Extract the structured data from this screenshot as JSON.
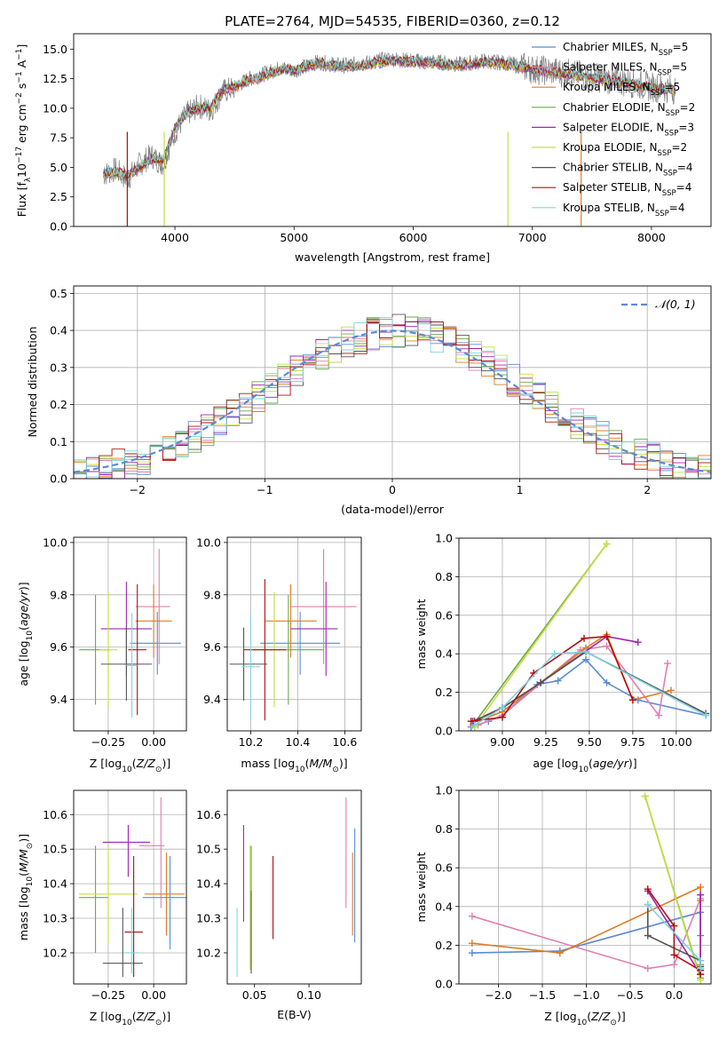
{
  "figure": {
    "title": "PLATE=2764, MJD=54535, FIBERID=0360, z=0.12"
  },
  "series": [
    {
      "name": "Chabrier MILES, N$_{SSP}$=5",
      "label": "Chabrier MILES, N",
      "sub": "SSP",
      "tail": "=5",
      "color": "#5b8ad6"
    },
    {
      "name": "Salpeter MILES, N$_{SSP}$=5",
      "label": "Salpeter MILES, N",
      "sub": "SSP",
      "tail": "=5",
      "color": "#e07fb0"
    },
    {
      "name": "Kroupa MILES, N$_{SSP}$=5",
      "label": "Kroupa MILES, N",
      "sub": "SSP",
      "tail": "=5",
      "color": "#e07b24"
    },
    {
      "name": "Chabrier ELODIE, N$_{SSP}$=2",
      "label": "Chabrier ELODIE, N",
      "sub": "SSP",
      "tail": "=2",
      "color": "#6aa84f"
    },
    {
      "name": "Salpeter ELODIE, N$_{SSP}$=3",
      "label": "Salpeter ELODIE, N",
      "sub": "SSP",
      "tail": "=3",
      "color": "#9c27b0"
    },
    {
      "name": "Kroupa ELODIE, N$_{SSP}$=2",
      "label": "Kroupa ELODIE, N",
      "sub": "SSP",
      "tail": "=2",
      "color": "#c6e03c"
    },
    {
      "name": "Chabrier STELIB, N$_{SSP}$=4",
      "label": "Chabrier STELIB, N",
      "sub": "SSP",
      "tail": "=4",
      "color": "#555555"
    },
    {
      "name": "Salpeter STELIB, N$_{SSP}$=4",
      "label": "Salpeter STELIB, N",
      "sub": "SSP",
      "tail": "=4",
      "color": "#b00f12"
    },
    {
      "name": "Kroupa STELIB, N$_{SSP}$=4",
      "label": "Kroupa STELIB, N",
      "sub": "SSP",
      "tail": "=4",
      "color": "#7fd4e0"
    }
  ],
  "chart_data": [
    {
      "id": "spectrum",
      "type": "line",
      "title": "PLATE=2764, MJD=54535, FIBERID=0360, z=0.12",
      "xlabel": "wavelength [Angstrom, rest frame]",
      "ylabel": "Flux [f$_\\lambda$10$^{-17}$ erg cm$^{-2}$ s$^{-1}$ A$^{-1}$]",
      "xlim": [
        3150,
        8500
      ],
      "ylim": [
        0,
        16.3
      ],
      "xticks": [
        4000,
        5000,
        6000,
        7000,
        8000
      ],
      "yticks": [
        0.0,
        2.5,
        5.0,
        7.5,
        10.0,
        12.5,
        15.0
      ],
      "grid": false,
      "legend": "upper right",
      "observed": {
        "color": "#7f7f7f",
        "x": [
          3400,
          3500,
          3600,
          3700,
          3800,
          3900,
          4000,
          4100,
          4200,
          4300,
          4400,
          4500,
          4600,
          4700,
          4800,
          4900,
          5000,
          5200,
          5400,
          5600,
          5800,
          6000,
          6200,
          6400,
          6600,
          6800,
          7000,
          7200,
          7400,
          7600,
          7800,
          8000,
          8200
        ],
        "y": [
          4.4,
          4.8,
          4.0,
          5.2,
          6.0,
          5.3,
          8.0,
          9.5,
          10.2,
          9.8,
          11.4,
          11.7,
          12.4,
          12.7,
          13.1,
          13.4,
          13.2,
          13.9,
          13.6,
          13.8,
          14.2,
          14.0,
          13.9,
          13.7,
          14.0,
          13.8,
          13.3,
          13.1,
          12.8,
          12.5,
          12.2,
          11.8,
          11.6
        ]
      },
      "model": {
        "x": [
          3400,
          3500,
          3600,
          3700,
          3800,
          3900,
          4000,
          4100,
          4200,
          4300,
          4400,
          4500,
          4600,
          4700,
          4800,
          4900,
          5000,
          5200,
          5400,
          5600,
          5800,
          6000,
          6200,
          6400,
          6600,
          6800,
          7000,
          7200,
          7400,
          7600,
          7800,
          8000,
          8200
        ],
        "y": [
          4.5,
          4.6,
          4.3,
          5.0,
          5.7,
          5.6,
          8.3,
          9.6,
          10.0,
          10.0,
          11.5,
          11.8,
          12.3,
          12.6,
          13.0,
          13.3,
          13.2,
          13.8,
          13.5,
          13.7,
          14.0,
          13.9,
          13.8,
          13.6,
          13.9,
          13.7,
          13.3,
          13.0,
          12.7,
          12.4,
          12.1,
          11.7,
          11.5
        ]
      }
    },
    {
      "id": "residuals",
      "type": "step",
      "xlabel": "(data-model)/error",
      "ylabel": "Normed distribution",
      "xlim": [
        -2.5,
        2.5
      ],
      "ylim": [
        0,
        0.52
      ],
      "xticks": [
        -2,
        -1,
        0,
        1,
        2
      ],
      "yticks": [
        0.0,
        0.1,
        0.2,
        0.3,
        0.4,
        0.5
      ],
      "grid": true,
      "legend": "upper right",
      "gaussian": {
        "name": "$\\mathcal{N}(0,1)$",
        "label": "𝒩(0, 1)",
        "color": "#5b8ad6"
      }
    },
    {
      "id": "age_vs_Z",
      "type": "errorbar",
      "xlabel": "Z [log$_{10}$($Z/Z_\\odot$)]",
      "ylabel": "age  [log$_{10}$($age/yr$)]",
      "xlim": [
        -0.44,
        0.18
      ],
      "ylim": [
        9.28,
        10.02
      ],
      "xticks": [
        -0.25,
        0.0
      ],
      "yticks": [
        9.4,
        9.6,
        9.8,
        10.0
      ],
      "grid": true,
      "points": [
        {
          "x": 0.02,
          "y": 9.615,
          "xerr": [
            0.15,
            0.13
          ],
          "yerr": [
            0.12,
            0.12
          ]
        },
        {
          "x": 0.03,
          "y": 9.755,
          "xerr": [
            0.13,
            0.06
          ],
          "yerr": [
            0.22,
            0.22
          ]
        },
        {
          "x": 0.0,
          "y": 9.7,
          "xerr": [
            0.1,
            0.1
          ],
          "yerr": [
            0.14,
            0.14
          ]
        },
        {
          "x": -0.32,
          "y": 9.59,
          "xerr": [
            0.09,
            0.08
          ],
          "yerr": [
            0.21,
            0.21
          ]
        },
        {
          "x": -0.15,
          "y": 9.67,
          "xerr": [
            0.14,
            0.14
          ],
          "yerr": [
            0.18,
            0.18
          ]
        },
        {
          "x": -0.25,
          "y": 9.59,
          "xerr": [
            0.05,
            0.05
          ],
          "yerr": [
            0.22,
            0.22
          ]
        },
        {
          "x": -0.15,
          "y": 9.535,
          "xerr": [
            0.14,
            0.14
          ],
          "yerr": [
            0.14,
            0.14
          ]
        },
        {
          "x": -0.09,
          "y": 9.59,
          "xerr": [
            0.05,
            0.05
          ],
          "yerr": [
            0.25,
            0.25
          ]
        },
        {
          "x": -0.12,
          "y": 9.53,
          "xerr": [
            0.03,
            0.03
          ],
          "yerr": [
            0.2,
            0.2
          ]
        }
      ]
    },
    {
      "id": "age_vs_mass",
      "type": "errorbar",
      "xlabel": "mass [log$_{10}$($M/M_\\odot$)]",
      "ylabel": "",
      "xlim": [
        10.1,
        10.67
      ],
      "ylim": [
        9.28,
        10.02
      ],
      "xticks": [
        10.2,
        10.4,
        10.6
      ],
      "yticks": [
        9.4,
        9.6,
        9.8,
        10.0
      ],
      "grid": true,
      "points": [
        {
          "x": 10.41,
          "y": 9.615,
          "xerr": [
            0.17,
            0.17
          ],
          "yerr": [
            0.12,
            0.12
          ]
        },
        {
          "x": 10.51,
          "y": 9.755,
          "xerr": [
            0.14,
            0.14
          ],
          "yerr": [
            0.22,
            0.22
          ]
        },
        {
          "x": 10.37,
          "y": 9.7,
          "xerr": [
            0.11,
            0.11
          ],
          "yerr": [
            0.14,
            0.14
          ]
        },
        {
          "x": 10.36,
          "y": 9.59,
          "xerr": [
            0.15,
            0.15
          ],
          "yerr": [
            0.21,
            0.21
          ]
        },
        {
          "x": 10.52,
          "y": 9.67,
          "xerr": [
            0.15,
            0.05
          ],
          "yerr": [
            0.18,
            0.18
          ]
        },
        {
          "x": 10.3,
          "y": 9.59,
          "xerr": [
            0.05,
            0.05
          ],
          "yerr": [
            0.22,
            0.22
          ]
        },
        {
          "x": 10.17,
          "y": 9.535,
          "xerr": [
            0.06,
            0.1
          ],
          "yerr": [
            0.14,
            0.14
          ]
        },
        {
          "x": 10.26,
          "y": 9.59,
          "xerr": [
            0.09,
            0.09
          ],
          "yerr": [
            0.27,
            0.27
          ]
        },
        {
          "x": 10.2,
          "y": 9.525,
          "xerr": [
            0.04,
            0.04
          ],
          "yerr": [
            0.2,
            0.2
          ]
        }
      ]
    },
    {
      "id": "weight_vs_age",
      "type": "line",
      "xlabel": "age  [log$_{10}$($age/yr$)]",
      "ylabel": "mass weight",
      "xlim": [
        8.75,
        10.2
      ],
      "ylim": [
        0,
        1.0
      ],
      "xticks": [
        9.0,
        9.25,
        9.5,
        9.75,
        10.0
      ],
      "yticks": [
        0.0,
        0.2,
        0.4,
        0.6,
        0.8,
        1.0
      ],
      "grid": true,
      "lines": [
        {
          "x": [
            8.82,
            8.92,
            9.0,
            9.2,
            9.32,
            9.48,
            9.6,
            9.78,
            10.17
          ],
          "y": [
            0.02,
            0.05,
            0.08,
            0.24,
            0.26,
            0.37,
            0.25,
            0.16,
            0.08
          ]
        },
        {
          "x": [
            8.86,
            9.0,
            9.45,
            9.6,
            9.9,
            9.95
          ],
          "y": [
            0.03,
            0.08,
            0.42,
            0.44,
            0.08,
            0.35
          ]
        },
        {
          "x": [
            8.86,
            9.0,
            9.48,
            9.6,
            9.75,
            9.97
          ],
          "y": [
            0.05,
            0.1,
            0.43,
            0.5,
            0.16,
            0.21
          ]
        },
        {
          "x": [
            8.83,
            9.6
          ],
          "y": [
            0.03,
            0.97
          ]
        },
        {
          "x": [
            8.83,
            9.0,
            9.22,
            9.6,
            9.78
          ],
          "y": [
            0.05,
            0.12,
            0.25,
            0.49,
            0.46
          ]
        },
        {
          "x": [
            8.84,
            9.6
          ],
          "y": [
            0.02,
            0.97
          ]
        },
        {
          "x": [
            8.84,
            9.0,
            9.22,
            9.48,
            10.17
          ],
          "y": [
            0.05,
            0.12,
            0.25,
            0.41,
            0.09
          ]
        },
        {
          "x": [
            8.82,
            9.0,
            9.18,
            9.47,
            9.6,
            9.75
          ],
          "y": [
            0.05,
            0.07,
            0.3,
            0.48,
            0.49,
            0.16
          ]
        },
        {
          "x": [
            8.84,
            9.0,
            9.3,
            9.48,
            10.17
          ],
          "y": [
            0.03,
            0.12,
            0.4,
            0.41,
            0.08
          ]
        }
      ]
    },
    {
      "id": "mass_vs_Z",
      "type": "errorbar",
      "xlabel": "Z [log$_{10}$($Z/Z_\\odot$)]",
      "ylabel": "mass [log$_{10}$($M/M_\\odot$)]",
      "xlim": [
        -0.44,
        0.18
      ],
      "ylim": [
        10.11,
        10.67
      ],
      "xticks": [
        -0.25,
        0.0
      ],
      "yticks": [
        10.2,
        10.3,
        10.4,
        10.5,
        10.6
      ],
      "grid": true,
      "points": [
        {
          "x": 0.09,
          "y": 10.36,
          "xerr": [
            0.15,
            0.13
          ],
          "yerr": [
            0.15,
            0.12
          ]
        },
        {
          "x": 0.04,
          "y": 10.51,
          "xerr": [
            0.12,
            0.02
          ],
          "yerr": [
            0.18,
            0.14
          ]
        },
        {
          "x": 0.07,
          "y": 10.37,
          "xerr": [
            0.12,
            0.1
          ],
          "yerr": [
            0.12,
            0.12
          ]
        },
        {
          "x": -0.32,
          "y": 10.36,
          "xerr": [
            0.09,
            0.07
          ],
          "yerr": [
            0.16,
            0.15
          ]
        },
        {
          "x": -0.14,
          "y": 10.52,
          "xerr": [
            0.14,
            0.12
          ],
          "yerr": [
            0.1,
            0.05
          ]
        },
        {
          "x": -0.25,
          "y": 10.37,
          "xerr": [
            0.16,
            0.16
          ],
          "yerr": [
            0.14,
            0.14
          ]
        },
        {
          "x": -0.17,
          "y": 10.17,
          "xerr": [
            0.11,
            0.11
          ],
          "yerr": [
            0.04,
            0.16
          ]
        },
        {
          "x": -0.11,
          "y": 10.26,
          "xerr": [
            0.05,
            0.05
          ],
          "yerr": [
            0.13,
            0.22
          ]
        },
        {
          "x": -0.12,
          "y": 10.2,
          "xerr": [
            0.04,
            0.04
          ],
          "yerr": [
            0.06,
            0.13
          ]
        }
      ]
    },
    {
      "id": "mass_vs_EBV",
      "type": "errorbar",
      "xlabel": "E(B-V)",
      "ylabel": "",
      "xlim": [
        0.025,
        0.148
      ],
      "ylim": [
        10.11,
        10.67
      ],
      "xticks": [
        0.05,
        0.1
      ],
      "yticks": [
        10.2,
        10.3,
        10.4,
        10.5,
        10.6
      ],
      "grid": false,
      "points": [
        {
          "x": 0.142,
          "y": 10.36,
          "xerr": [
            0,
            0
          ],
          "yerr": [
            0.13,
            0.2
          ]
        },
        {
          "x": 0.134,
          "y": 10.49,
          "xerr": [
            0,
            0
          ],
          "yerr": [
            0.16,
            0.16
          ]
        },
        {
          "x": 0.14,
          "y": 10.37,
          "xerr": [
            0,
            0
          ],
          "yerr": [
            0.12,
            0.12
          ]
        },
        {
          "x": 0.047,
          "y": 10.36,
          "xerr": [
            0,
            0
          ],
          "yerr": [
            0.19,
            0.15
          ]
        },
        {
          "x": 0.04,
          "y": 10.49,
          "xerr": [
            0,
            0
          ],
          "yerr": [
            0.2,
            0.08
          ]
        },
        {
          "x": 0.046,
          "y": 10.33,
          "xerr": [
            0,
            0
          ],
          "yerr": [
            0.18,
            0.18
          ]
        },
        {
          "x": 0.047,
          "y": 10.26,
          "xerr": [
            0,
            0
          ],
          "yerr": [
            0.12,
            0.12
          ]
        },
        {
          "x": 0.067,
          "y": 10.36,
          "xerr": [
            0,
            0
          ],
          "yerr": [
            0.12,
            0.12
          ]
        },
        {
          "x": 0.034,
          "y": 10.22,
          "xerr": [
            0,
            0
          ],
          "yerr": [
            0.09,
            0.11
          ]
        }
      ]
    },
    {
      "id": "weight_vs_Z",
      "type": "line",
      "xlabel": "Z [log$_{10}$($Z/Z_\\odot$)]",
      "ylabel": "mass weight",
      "xlim": [
        -2.45,
        0.42
      ],
      "ylim": [
        0,
        1.0
      ],
      "xticks": [
        -2.0,
        -1.5,
        -1.0,
        -0.5,
        0.0
      ],
      "yticks": [
        0.0,
        0.2,
        0.4,
        0.6,
        0.8,
        1.0
      ],
      "grid": true,
      "lines": [
        {
          "x": [
            -2.3,
            -1.3,
            0.3,
            0.3,
            0.3
          ],
          "y": [
            0.16,
            0.17,
            0.37,
            0.25,
            0.08
          ]
        },
        {
          "x": [
            -2.3,
            -0.3,
            0.0,
            0.3,
            0.3
          ],
          "y": [
            0.35,
            0.08,
            0.1,
            0.44,
            0.08
          ]
        },
        {
          "x": [
            -2.3,
            -1.3,
            0.3,
            0.3,
            0.3
          ],
          "y": [
            0.21,
            0.16,
            0.5,
            0.43,
            0.1
          ]
        },
        {
          "x": [
            -0.33,
            0.3
          ],
          "y": [
            0.97,
            0.03
          ]
        },
        {
          "x": [
            -0.3,
            0.3,
            0.3
          ],
          "y": [
            0.48,
            0.05,
            0.46
          ]
        },
        {
          "x": [
            -0.33,
            0.3
          ],
          "y": [
            0.97,
            0.02
          ]
        },
        {
          "x": [
            -0.3,
            -0.3,
            0.3,
            0.3
          ],
          "y": [
            0.41,
            0.25,
            0.12,
            0.09
          ]
        },
        {
          "x": [
            -0.3,
            0.0,
            0.0,
            0.3,
            0.3
          ],
          "y": [
            0.49,
            0.3,
            0.15,
            0.07,
            0.05
          ]
        },
        {
          "x": [
            -0.3,
            0.3,
            0.3
          ],
          "y": [
            0.41,
            0.12,
            0.08
          ]
        }
      ]
    }
  ]
}
